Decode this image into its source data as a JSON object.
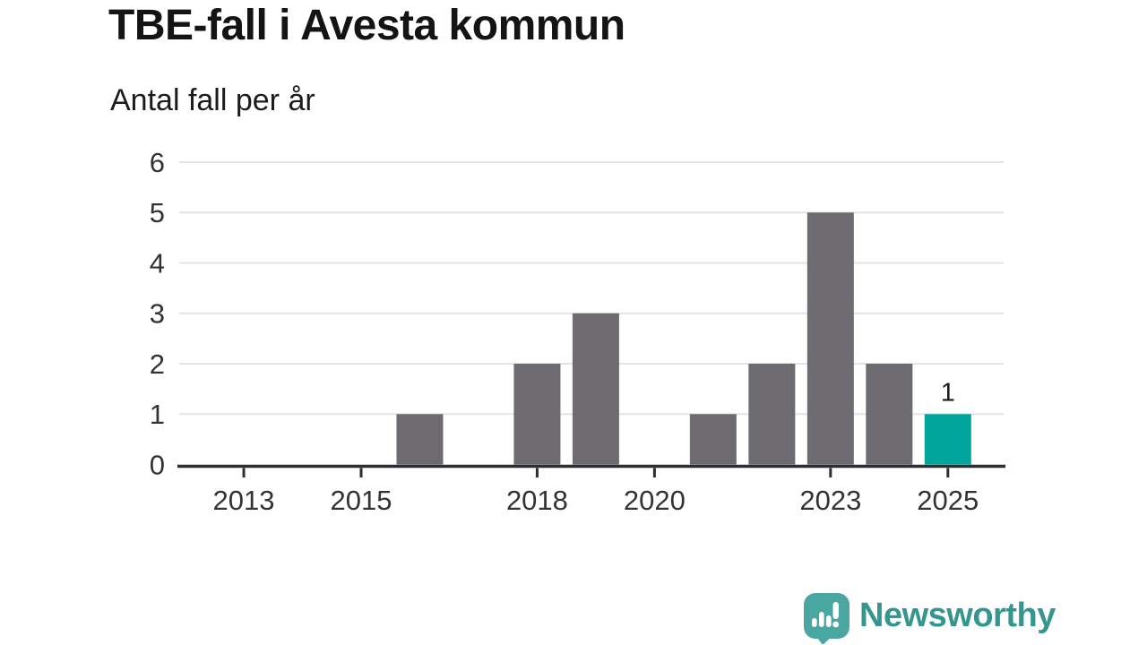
{
  "header": {
    "title": "TBE-fall i Avesta kommun",
    "subtitle": "Antal fall per år"
  },
  "chart_data": {
    "type": "bar",
    "title": "TBE-fall i Avesta kommun",
    "ylabel": "Antal fall per år",
    "xlabel": "",
    "categories": [
      "2013",
      "2014",
      "2015",
      "2016",
      "2017",
      "2018",
      "2019",
      "2020",
      "2021",
      "2022",
      "2023",
      "2024",
      "2025"
    ],
    "values": [
      0,
      0,
      0,
      1,
      0,
      2,
      3,
      0,
      1,
      2,
      5,
      2,
      1
    ],
    "highlight_category": "2025",
    "highlight_value_label": "1",
    "x_tick_labels": [
      "2013",
      "2015",
      "2018",
      "2020",
      "2023",
      "2025"
    ],
    "y_ticks": [
      0,
      1,
      2,
      3,
      4,
      5,
      6
    ],
    "ylim": [
      0,
      6
    ],
    "xlim": [
      2011.9,
      2025.95
    ],
    "grid": "horizontal",
    "legend": "none",
    "colors": {
      "bar": "#6d6b70",
      "highlight": "#00a59b",
      "axis": "#2e2d32",
      "gridline": "#e4e4e6",
      "tick_label": "#333333",
      "value_label": "#1a1a1a"
    }
  },
  "footer": {
    "brand": "Newsworthy",
    "logo_icon": "bar-chart-speech-bubble-icon",
    "icon_color": "#4aa6a0",
    "brand_text_color": "#35968f"
  }
}
